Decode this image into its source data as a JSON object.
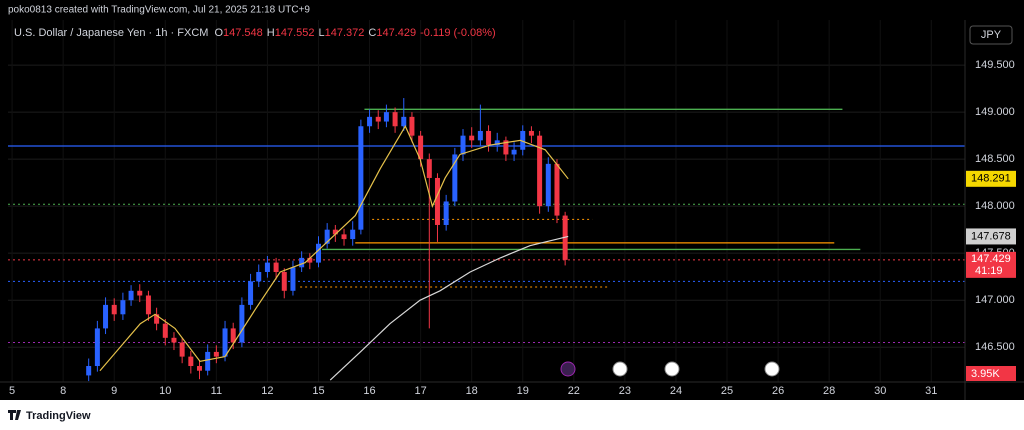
{
  "header": {
    "credit": "poko0813 created with TradingView.com, Jul 21, 2025 21:18 UTC+9",
    "footer": "TradingView"
  },
  "chart_data": {
    "type": "candlestick",
    "title": "U.S. Dollar / Japanese Yen · 1h · FXCM",
    "ohlc": [
      {
        "label": "O",
        "value": 147.548
      },
      {
        "label": "H",
        "value": 147.552
      },
      {
        "label": "L",
        "value": 147.372
      },
      {
        "label": "C",
        "value": 147.429
      }
    ],
    "change": "-0.119 (-0.08%)",
    "currency": "JPY",
    "countdown": "41:19",
    "volume_label": "3.95K",
    "up_color": "#2962ff",
    "down_color": "#f23645",
    "x": [
      1.5,
      1.67,
      1.83,
      2,
      2.17,
      2.33,
      2.5,
      2.67,
      2.83,
      3,
      3.17,
      3.33,
      3.5,
      3.67,
      3.83,
      4,
      4.17,
      4.33,
      4.5,
      4.67,
      4.83,
      5,
      5.17,
      5.33,
      5.5,
      5.67,
      5.83,
      6,
      6.17,
      6.33,
      6.5,
      6.67,
      6.83,
      7,
      7.17,
      7.33,
      7.5,
      7.67,
      7.83,
      8,
      8.17,
      8.33,
      8.5,
      8.67,
      8.83,
      9,
      9.17,
      9.33,
      9.5,
      9.67,
      9.83,
      10,
      10.17,
      10.33,
      10.5,
      10.67,
      10.83
    ],
    "open": [
      146.2,
      146.3,
      146.7,
      146.95,
      146.85,
      147,
      147.1,
      147.05,
      146.85,
      146.75,
      146.6,
      146.55,
      146.4,
      146.3,
      146.25,
      146.45,
      146.4,
      146.7,
      146.55,
      146.95,
      147.2,
      147.3,
      147.4,
      147.3,
      147.1,
      147.35,
      147.45,
      147.4,
      147.6,
      147.75,
      147.7,
      147.65,
      147.75,
      148.85,
      148.95,
      148.9,
      149,
      148.85,
      148.95,
      148.75,
      148.5,
      148.3,
      147.8,
      148.05,
      148.55,
      148.75,
      148.7,
      148.8,
      148.65,
      148.7,
      148.55,
      148.6,
      148.8,
      148.75,
      148,
      148.45,
      147.9
    ],
    "high": [
      146.38,
      146.78,
      147.03,
      147.02,
      147.08,
      147.16,
      147.17,
      147.1,
      146.92,
      146.8,
      146.66,
      146.6,
      146.46,
      146.36,
      146.53,
      146.52,
      146.78,
      146.76,
      147.03,
      147.28,
      147.38,
      147.47,
      147.45,
      147.34,
      147.42,
      147.52,
      147.5,
      147.68,
      147.82,
      147.8,
      147.76,
      147.84,
      148.92,
      149.03,
      149.02,
      149.08,
      149.05,
      149.15,
      149,
      148.8,
      148.56,
      148.35,
      148.12,
      148.62,
      148.82,
      148.84,
      149.08,
      148.86,
      148.78,
      148.74,
      148.68,
      148.86,
      148.85,
      148.8,
      148.52,
      148.5,
      147.94
    ],
    "low": [
      146.14,
      146.24,
      146.64,
      146.78,
      146.79,
      146.94,
      146.98,
      146.78,
      146.68,
      146.52,
      146.47,
      146.33,
      146.22,
      146.16,
      146.2,
      146.33,
      146.35,
      146.48,
      146.5,
      146.9,
      147.14,
      147.24,
      147.22,
      147.02,
      147.05,
      147.3,
      147.33,
      147.35,
      147.55,
      147.62,
      147.58,
      147.58,
      147.7,
      148.78,
      148.82,
      148.84,
      148.78,
      148.8,
      148.68,
      148.42,
      146.7,
      147.62,
      147.74,
      148,
      148.48,
      148.62,
      148.64,
      148.58,
      148.58,
      148.48,
      148.48,
      148.54,
      148.67,
      147.92,
      147.94,
      147.82,
      147.37
    ],
    "close": [
      146.3,
      146.7,
      146.95,
      146.85,
      147,
      147.1,
      147.05,
      146.85,
      146.75,
      146.6,
      146.55,
      146.4,
      146.3,
      146.25,
      146.45,
      146.4,
      146.7,
      146.55,
      146.95,
      147.2,
      147.3,
      147.4,
      147.3,
      147.1,
      147.35,
      147.45,
      147.4,
      147.6,
      147.75,
      147.7,
      147.65,
      147.75,
      148.85,
      148.95,
      148.9,
      149,
      148.85,
      148.95,
      148.75,
      148.5,
      148.3,
      147.8,
      148.05,
      148.55,
      148.75,
      148.7,
      148.8,
      148.65,
      148.7,
      148.55,
      148.6,
      148.8,
      148.75,
      148,
      148.45,
      147.9,
      147.429
    ],
    "lines": [
      {
        "color": "#e5c14a",
        "x": [
          1.72,
          2.51,
          2.8,
          3.19,
          3.68,
          4.17,
          4.76,
          5.25,
          5.74,
          6.23,
          6.72,
          7.21,
          7.7,
          7.99,
          8.23,
          8.48,
          8.77,
          9.36,
          9.95,
          10.44,
          10.89
        ],
        "values": [
          146.25,
          146.75,
          146.85,
          146.7,
          146.35,
          146.4,
          146.9,
          147.3,
          147.4,
          147.65,
          147.9,
          148.4,
          148.85,
          148.5,
          148,
          148.3,
          148.55,
          148.65,
          148.7,
          148.6,
          148.291
        ]
      },
      {
        "color": "#d8d8d8",
        "x": [
          6.23,
          6.82,
          7.4,
          7.99,
          8.38,
          8.97,
          9.56,
          10.14,
          10.89
        ],
        "values": [
          146.15,
          146.45,
          146.75,
          147,
          147.1,
          147.3,
          147.45,
          147.58,
          147.678
        ]
      }
    ],
    "levels": [
      {
        "price": 148.64,
        "color": "#2962ff",
        "dash": false
      },
      {
        "price": 149.03,
        "from": 6.9,
        "to": 16.26,
        "color": "#4caf50",
        "dash": false
      },
      {
        "price": 147.54,
        "from": 6.07,
        "to": 16.61,
        "color": "#4caf50",
        "dash": false
      },
      {
        "price": 147.61,
        "from": 6.72,
        "to": 16.1,
        "color": "#ff9800",
        "dash": false
      },
      {
        "price": 147.86,
        "from": 7.05,
        "to": 11.36,
        "color": "#ff9800",
        "dash": true
      },
      {
        "price": 147.14,
        "from": 5.64,
        "to": 11.71,
        "color": "#ff9800",
        "dash": true
      },
      {
        "price": 148.02,
        "color": "#4caf50",
        "dash": true
      },
      {
        "price": 147.2,
        "color": "#2962ff",
        "dash": true
      },
      {
        "price": 146.55,
        "color": "#9c27b0",
        "dash": true
      },
      {
        "price": 147.429,
        "color": "#f23645",
        "dash": true
      }
    ],
    "xlim": [
      -0.08,
      18.66
    ],
    "xticks": [
      {
        "value": 0,
        "label": "5"
      },
      {
        "value": 1,
        "label": "8"
      },
      {
        "value": 2,
        "label": "9"
      },
      {
        "value": 3,
        "label": "10"
      },
      {
        "value": 4,
        "label": "11"
      },
      {
        "value": 5,
        "label": "12"
      },
      {
        "value": 6,
        "label": "15"
      },
      {
        "value": 7,
        "label": "16"
      },
      {
        "value": 8,
        "label": "17"
      },
      {
        "value": 9,
        "label": "18"
      },
      {
        "value": 10,
        "label": "19"
      },
      {
        "value": 11,
        "label": "22"
      },
      {
        "value": 12,
        "label": "23"
      },
      {
        "value": 13,
        "label": "24"
      },
      {
        "value": 14,
        "label": "25"
      },
      {
        "value": 15,
        "label": "26"
      },
      {
        "value": 16,
        "label": "28"
      },
      {
        "value": 17,
        "label": "30"
      },
      {
        "value": 18,
        "label": "31"
      }
    ],
    "ylim": [
      146.13,
      149.98
    ],
    "yticks": [
      {
        "value": 146.5,
        "label": "146.500"
      },
      {
        "value": 147,
        "label": "147.000"
      },
      {
        "value": 147.5,
        "label": "147.500"
      },
      {
        "value": 148,
        "label": "148.000"
      },
      {
        "value": 148.5,
        "label": "148.500"
      },
      {
        "value": 149,
        "label": "149.000"
      },
      {
        "value": 149.5,
        "label": "149.500"
      }
    ],
    "grid": true
  }
}
